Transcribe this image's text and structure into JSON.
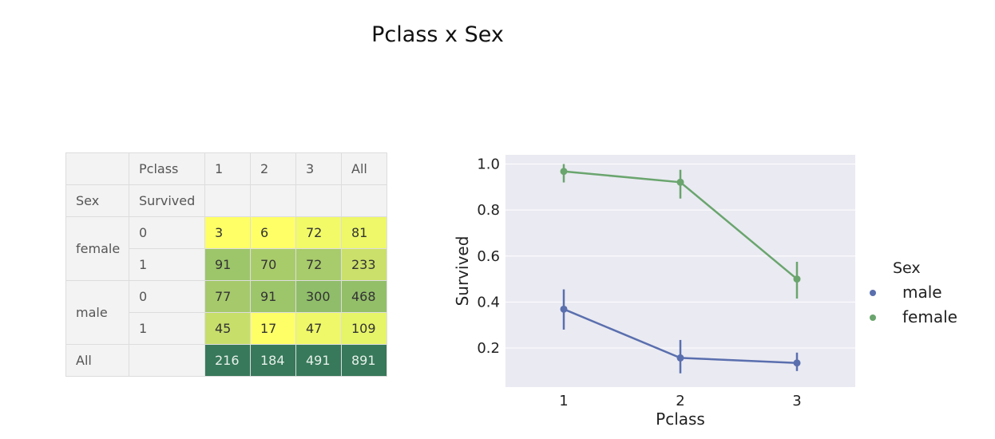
{
  "title": "Pclass x Sex",
  "table": {
    "header1": [
      "",
      "Pclass",
      "1",
      "2",
      "3",
      "All"
    ],
    "header2": [
      "Sex",
      "Survived",
      "",
      "",
      "",
      ""
    ],
    "rows": [
      {
        "sex": "female",
        "survived": "0",
        "values": [
          "3",
          "6",
          "72",
          "81"
        ],
        "colors": [
          "#ffff66",
          "#ffff66",
          "#f2fa68",
          "#eef868"
        ]
      },
      {
        "sex": "",
        "survived": "1",
        "values": [
          "91",
          "70",
          "72",
          "233"
        ],
        "colors": [
          "#9dc56a",
          "#a9cc6b",
          "#a8cb6b",
          "#cbe06a"
        ]
      },
      {
        "sex": "male",
        "survived": "0",
        "values": [
          "77",
          "91",
          "300",
          "468"
        ],
        "colors": [
          "#a5c96b",
          "#9dc56a",
          "#8fbd69",
          "#93bf69"
        ]
      },
      {
        "sex": "",
        "survived": "1",
        "values": [
          "45",
          "17",
          "47",
          "109"
        ],
        "colors": [
          "#c7de6a",
          "#feff66",
          "#eff868",
          "#e6f468"
        ]
      },
      {
        "sex": "All",
        "survived": "",
        "values": [
          "216",
          "184",
          "491",
          "891"
        ],
        "colors": [
          "#37795a",
          "#37795a",
          "#37795a",
          "#37795a"
        ]
      }
    ]
  },
  "chart_data": {
    "type": "line",
    "categories": [
      "1",
      "2",
      "3"
    ],
    "xlabel": "Pclass",
    "ylabel": "Survived",
    "ylim": [
      0.03,
      1.04
    ],
    "yticks": [
      "0.2",
      "0.4",
      "0.6",
      "0.8",
      "1.0"
    ],
    "legend_title": "Sex",
    "legend_position": "right",
    "series": [
      {
        "name": "male",
        "color": "#5a6fae",
        "values": [
          0.369,
          0.157,
          0.135
        ],
        "ci": [
          [
            0.28,
            0.455
          ],
          [
            0.09,
            0.235
          ],
          [
            0.1,
            0.18
          ]
        ]
      },
      {
        "name": "female",
        "color": "#6aa56e",
        "values": [
          0.968,
          0.921,
          0.5
        ],
        "ci": [
          [
            0.92,
            1.0
          ],
          [
            0.85,
            0.975
          ],
          [
            0.415,
            0.575
          ]
        ]
      }
    ]
  }
}
